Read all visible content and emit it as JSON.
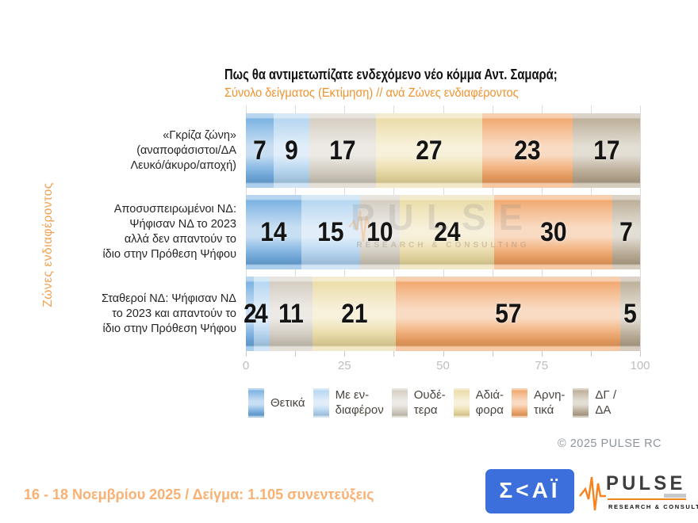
{
  "title": "Πως θα αντιμετωπίζατε ενδεχόμενο νέο κόμμα Αντ. Σαμαρά;",
  "subtitle": "Σύνολο δείγματος   (Εκτίμηση) // ανά Ζώνες ενδιαφέροντος",
  "y_axis_title": "Ζώνες ενδιαφέροντος",
  "chart_data": {
    "type": "bar",
    "orientation": "horizontal",
    "stacked": true,
    "units": "percent",
    "categories": [
      "«Γκρίζα ζώνη»\n(αναποφάσιστοι/ΔΑ\nΛευκό/άκυρο/αποχή)",
      "Αποσυσπειρωμένοι ΝΔ:\nΨήφισαν ΝΔ το 2023\nαλλά δεν απαντούν το\nίδιο στην Πρόθεση Ψήφου",
      "Σταθεροί ΝΔ: Ψήφισαν ΝΔ\nτο 2023 και απαντούν το\nίδιο στην Πρόθεση Ψήφου"
    ],
    "series": [
      {
        "name": "Θετικά",
        "color": "#6FAADF",
        "values": [
          7,
          14,
          2
        ]
      },
      {
        "name": "Με ενδιαφέρον",
        "color": "#AFD2EF",
        "values": [
          9,
          15,
          4
        ]
      },
      {
        "name": "Ουδέτερα",
        "color": "#D0C9BC",
        "values": [
          17,
          10,
          11
        ]
      },
      {
        "name": "Αδιάφορα",
        "color": "#E9D9A0",
        "values": [
          27,
          24,
          21
        ]
      },
      {
        "name": "Αρνητικά",
        "color": "#EFA162",
        "values": [
          23,
          30,
          57
        ]
      },
      {
        "name": "ΔΓ / ΔΑ",
        "color": "#B6A78F",
        "values": [
          17,
          7,
          5
        ]
      }
    ],
    "legend_labels": [
      "Θετικά",
      "Με εν-\nδιαφέρον",
      "Ουδέ-\nτερα",
      "Αδιά-\nφορα",
      "Αρνη-\nτικά",
      "ΔΓ /\nΔΑ"
    ],
    "legend_position": "bottom",
    "xlim": [
      0,
      100
    ],
    "x_ticks": [
      0,
      25,
      50,
      75,
      100
    ],
    "grid_step": 12.5,
    "grid": true
  },
  "watermark": {
    "word": "PULSE",
    "tagline": "RESEARCH & CONSULTING"
  },
  "copyright": "© 2025 PULSE RC",
  "footer": {
    "fieldwork": "16 - 18 Νοεμβρίου 2025  /  Δείγμα:  1.105 συνεντεύξεις"
  },
  "logos": {
    "skai_text": "Σ<ΑΪ",
    "pulse_word": "PULSE",
    "pulse_tagline": "RESEARCH & CONSULTING"
  },
  "colors": {
    "subtitle_orange": "#F0922E",
    "y_title_orange": "#F2A050",
    "footer_orange": "#F9B173",
    "skai_blue": "#3C6FDB",
    "pulse_orange": "#F5831F",
    "axis_label_gray": "#BDBDBD",
    "gridline_gray": "#DCDCDC",
    "copyright_gray": "#8D959D"
  }
}
